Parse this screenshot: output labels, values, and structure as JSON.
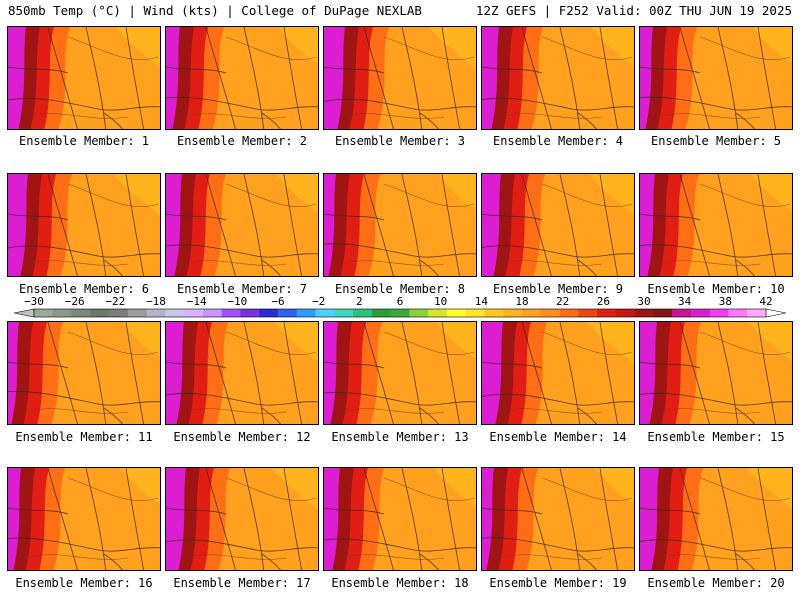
{
  "header": {
    "left": "850mb Temp (°C) | Wind (kts) | College of DuPage NEXLAB",
    "right": "12Z GEFS | F252 Valid: 00Z THU JUN 19 2025"
  },
  "members": [
    {
      "label": "Ensemble Member: 1"
    },
    {
      "label": "Ensemble Member: 2"
    },
    {
      "label": "Ensemble Member: 3"
    },
    {
      "label": "Ensemble Member: 4"
    },
    {
      "label": "Ensemble Member: 5"
    },
    {
      "label": "Ensemble Member: 6"
    },
    {
      "label": "Ensemble Member: 7"
    },
    {
      "label": "Ensemble Member: 8"
    },
    {
      "label": "Ensemble Member: 9"
    },
    {
      "label": "Ensemble Member: 10"
    },
    {
      "label": "Ensemble Member: 11"
    },
    {
      "label": "Ensemble Member: 12"
    },
    {
      "label": "Ensemble Member: 13"
    },
    {
      "label": "Ensemble Member: 14"
    },
    {
      "label": "Ensemble Member: 15"
    },
    {
      "label": "Ensemble Member: 16"
    },
    {
      "label": "Ensemble Member: 17"
    },
    {
      "label": "Ensemble Member: 18"
    },
    {
      "label": "Ensemble Member: 19"
    },
    {
      "label": "Ensemble Member: 20"
    }
  ],
  "colorbar": {
    "tick_labels": [
      "−30",
      "−26",
      "−22",
      "−18",
      "−14",
      "−10",
      "−6",
      "−2",
      "2",
      "6",
      "10",
      "14",
      "18",
      "22",
      "26",
      "30",
      "34",
      "38",
      "42"
    ],
    "colors": [
      "#9aaa9a",
      "#8a9a8a",
      "#7a8a7a",
      "#6a7a6a",
      "#7c7c7c",
      "#9c9c9c",
      "#b4b4c8",
      "#c8c8e6",
      "#d8b4ff",
      "#c896ff",
      "#a050ff",
      "#7830e0",
      "#2c2cd6",
      "#2c64f0",
      "#2c9cff",
      "#4cd2ff",
      "#3cd8c0",
      "#28c47a",
      "#28a03c",
      "#3ca83c",
      "#8cd23c",
      "#d6e62c",
      "#ffff28",
      "#ffe628",
      "#ffc81e",
      "#ffb41e",
      "#ffa01e",
      "#ff8c1e",
      "#ff6e14",
      "#f04614",
      "#e01e14",
      "#c81414",
      "#a01414",
      "#821414",
      "#c81496",
      "#dc1ed2",
      "#f03cf0",
      "#ff78ff",
      "#ffaaff"
    ]
  }
}
